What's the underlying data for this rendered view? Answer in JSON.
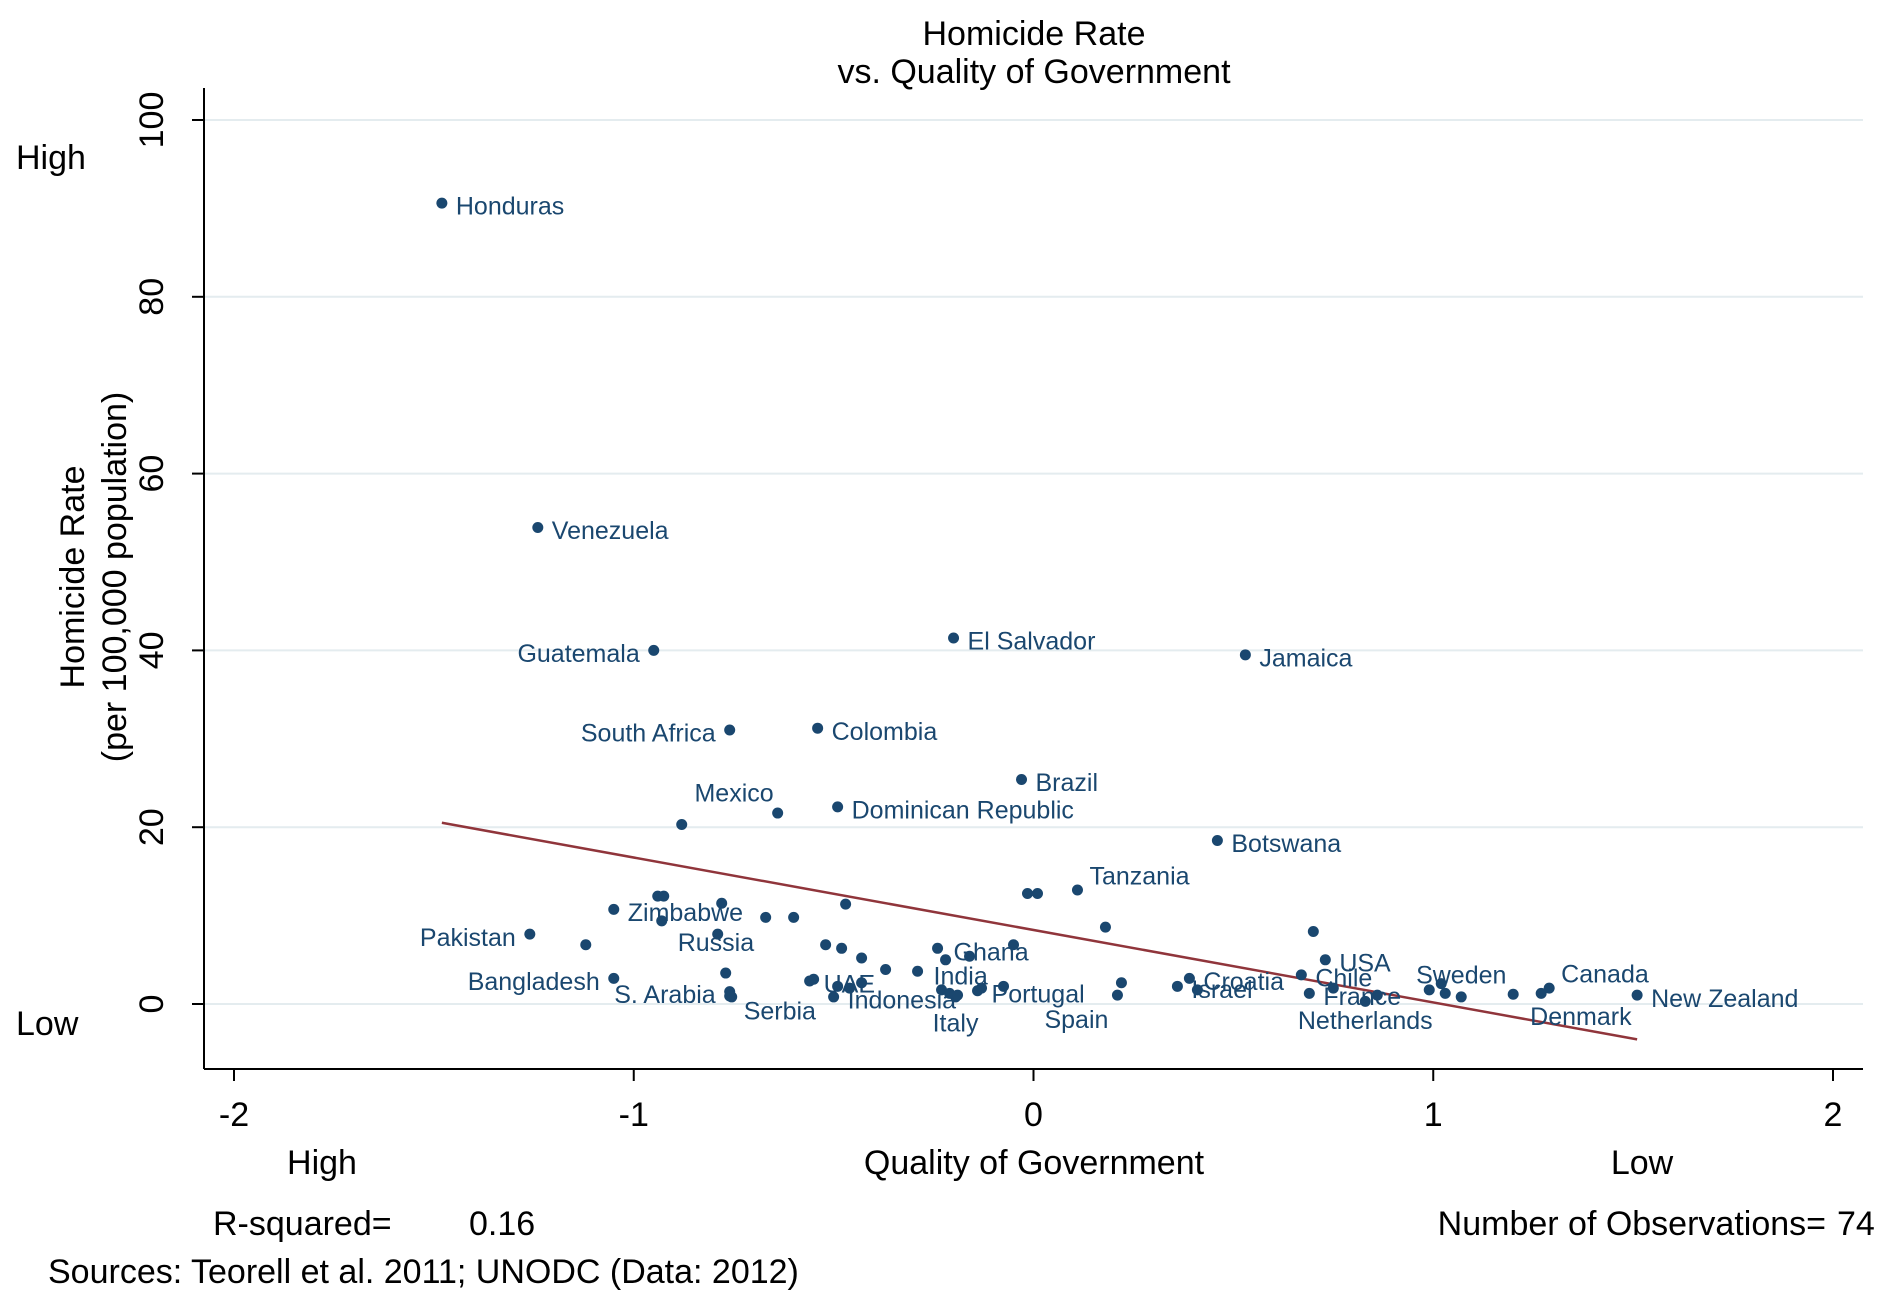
{
  "chart_data": {
    "type": "scatter",
    "title": [
      "Homicide Rate",
      "vs. Quality of Government"
    ],
    "ylabel": [
      "Homicide Rate",
      "(per 100,000 population)"
    ],
    "xlabel": "Quality of Government",
    "y_annotations": {
      "high": "High",
      "low": "Low"
    },
    "x_annotations": {
      "high": "High",
      "low": "Low"
    },
    "r_squared_label": "R-squared=",
    "r_squared": 0.16,
    "n_label": "Number of Observations=",
    "n": 74,
    "source": "Sources: Teorell et al. 2011; UNODC (Data: 2012)",
    "xlim": [
      -2,
      2
    ],
    "ylim": [
      0,
      100
    ],
    "xticks": [
      -2,
      -1,
      0,
      1,
      2
    ],
    "yticks": [
      0,
      20,
      40,
      60,
      80,
      100
    ],
    "grid": true,
    "color": "#1a476f",
    "x": [
      -1.48,
      -1.24,
      -0.95,
      -0.2,
      0.53,
      -0.76,
      -0.54,
      -0.03,
      -0.64,
      -0.49,
      0.46,
      0.11,
      -1.05,
      -1.26,
      -0.79,
      -1.05,
      -0.76,
      -0.755,
      -0.56,
      -0.5,
      -0.23,
      -0.195,
      -0.22,
      -0.14,
      0.21,
      0.39,
      0.36,
      0.67,
      0.73,
      0.69,
      0.83,
      1.02,
      1.29,
      1.27,
      1.51,
      -0.88,
      -0.94,
      -0.925,
      -0.015,
      0.01,
      -0.93,
      -0.78,
      -0.67,
      -0.6,
      -0.47,
      -1.12,
      0.18,
      0.7,
      -0.52,
      -0.48,
      -0.24,
      -0.16,
      -0.05,
      -0.43,
      -0.37,
      -0.29,
      -0.77,
      -0.49,
      -0.46,
      -0.43,
      -0.21,
      -0.19,
      -0.13,
      -0.075,
      0.22,
      0.41,
      0.99,
      1.03,
      1.07,
      1.2,
      -0.76,
      0.86,
      -0.55,
      0.75
    ],
    "y": [
      90.6,
      53.9,
      40.0,
      41.4,
      39.5,
      31.0,
      31.2,
      25.4,
      21.6,
      22.3,
      18.5,
      12.9,
      10.7,
      7.9,
      7.9,
      2.9,
      1.4,
      0.8,
      2.6,
      0.8,
      1.6,
      0.8,
      5.0,
      1.5,
      1.0,
      2.9,
      2.0,
      3.3,
      5.0,
      1.2,
      0.3,
      2.3,
      1.8,
      1.2,
      1.0,
      20.3,
      12.2,
      12.2,
      12.5,
      12.5,
      9.4,
      11.4,
      9.8,
      9.8,
      11.3,
      6.7,
      8.7,
      8.2,
      6.7,
      6.3,
      6.3,
      5.4,
      6.7,
      5.2,
      3.9,
      3.7,
      3.5,
      2.0,
      1.8,
      2.4,
      1.2,
      1.0,
      1.8,
      2.0,
      2.4,
      1.6,
      1.6,
      1.2,
      0.8,
      1.1,
      0.9,
      1.0,
      2.8,
      1.8
    ],
    "labels": [
      "Honduras",
      "Venezuela",
      "Guatemala",
      "El Salvador",
      "Jamaica",
      "South Africa",
      "Colombia",
      "Brazil",
      "Mexico",
      "Dominican Republic",
      "Botswana",
      "Tanzania",
      "Zimbabwe",
      "Pakistan",
      "Russia",
      "Bangladesh",
      "S. Arabia",
      "Serbia",
      "UAE",
      "Indonesia",
      "India",
      "Italy",
      "Ghana",
      "Portugal",
      "Spain",
      "Croatia",
      "Israel",
      "Chile",
      "USA",
      "France",
      "Netherlands",
      "Sweden",
      "Canada",
      "Denmark",
      "New Zealand",
      null,
      null,
      null,
      null,
      null,
      null,
      null,
      null,
      null,
      null,
      null,
      null,
      null,
      null,
      null,
      null,
      null,
      null,
      null,
      null,
      null,
      null,
      null,
      null,
      null,
      null,
      null,
      null,
      null,
      null,
      null,
      null,
      null,
      null,
      null,
      null,
      null,
      null,
      null
    ],
    "fit": {
      "x": [
        -1.48,
        1.51
      ],
      "y": [
        20.5,
        -4.0
      ],
      "color": "#90353b"
    }
  }
}
